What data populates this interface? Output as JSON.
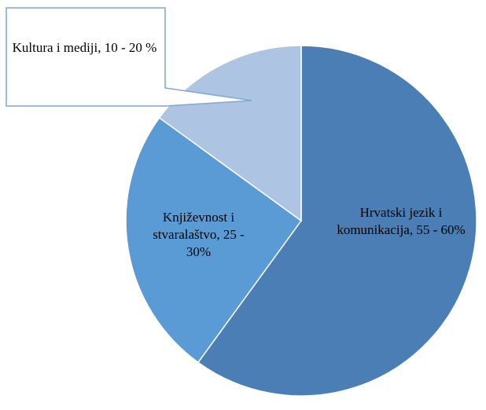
{
  "chart_data": {
    "type": "pie",
    "labels": [
      "Hrvatski jezik i komunikacija, 55 - 60%",
      "Književnost i stvaralaštvo, 25 - 30%",
      "Kultura i mediji, 10 - 20 %"
    ],
    "values": [
      60,
      25,
      15
    ],
    "colors": [
      "#4a7eb4",
      "#5b9bd5",
      "#adc5e3"
    ]
  }
}
